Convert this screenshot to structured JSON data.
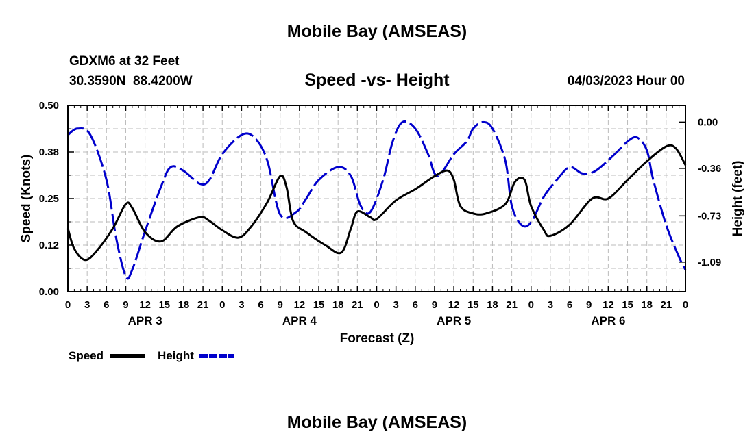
{
  "chart_data": {
    "type": "line",
    "title": "Mobile Bay (AMSEAS)",
    "subtitle": "Speed -vs- Height",
    "station": "GDXM6 at 32 Feet",
    "coords": "30.3590N  88.4200W",
    "date": "04/03/2023 Hour 00",
    "footer_title": "Mobile Bay (AMSEAS)",
    "xlabel": "Forecast (Z)",
    "ylabel_left": "Speed (Knots)",
    "ylabel_right": "Height (feet)",
    "x_range": [
      0,
      96
    ],
    "y_left_range": [
      0,
      0.5
    ],
    "y_right_range": [
      -1.32,
      0.13
    ],
    "y_left_ticks": [
      {
        "value": 0.0,
        "label": "0.00"
      },
      {
        "value": 0.125,
        "label": "0.12"
      },
      {
        "value": 0.25,
        "label": "0.25"
      },
      {
        "value": 0.375,
        "label": "0.38"
      },
      {
        "value": 0.5,
        "label": "0.50"
      }
    ],
    "y_right_ticks": [
      {
        "value": 0.0,
        "label": "0.00"
      },
      {
        "value": -0.36,
        "label": "-0.36"
      },
      {
        "value": -0.73,
        "label": "-0.73"
      },
      {
        "value": -1.09,
        "label": "-1.09"
      }
    ],
    "x_ticks": [
      {
        "h": 0,
        "label": "0"
      },
      {
        "h": 3,
        "label": "3"
      },
      {
        "h": 6,
        "label": "6"
      },
      {
        "h": 9,
        "label": "9"
      },
      {
        "h": 12,
        "label": "12"
      },
      {
        "h": 15,
        "label": "15"
      },
      {
        "h": 18,
        "label": "18"
      },
      {
        "h": 21,
        "label": "21"
      },
      {
        "h": 24,
        "label": "0"
      },
      {
        "h": 27,
        "label": "3"
      },
      {
        "h": 30,
        "label": "6"
      },
      {
        "h": 33,
        "label": "9"
      },
      {
        "h": 36,
        "label": "12"
      },
      {
        "h": 39,
        "label": "15"
      },
      {
        "h": 42,
        "label": "18"
      },
      {
        "h": 45,
        "label": "21"
      },
      {
        "h": 48,
        "label": "0"
      },
      {
        "h": 51,
        "label": "3"
      },
      {
        "h": 54,
        "label": "6"
      },
      {
        "h": 57,
        "label": "9"
      },
      {
        "h": 60,
        "label": "12"
      },
      {
        "h": 63,
        "label": "15"
      },
      {
        "h": 66,
        "label": "18"
      },
      {
        "h": 69,
        "label": "21"
      },
      {
        "h": 72,
        "label": "0"
      },
      {
        "h": 75,
        "label": "3"
      },
      {
        "h": 78,
        "label": "6"
      },
      {
        "h": 81,
        "label": "9"
      },
      {
        "h": 84,
        "label": "12"
      },
      {
        "h": 87,
        "label": "15"
      },
      {
        "h": 90,
        "label": "18"
      },
      {
        "h": 93,
        "label": "21"
      },
      {
        "h": 96,
        "label": "0"
      }
    ],
    "day_labels": [
      {
        "h": 12,
        "label": "APR 3"
      },
      {
        "h": 36,
        "label": "APR 4"
      },
      {
        "h": 60,
        "label": "APR 5"
      },
      {
        "h": 84,
        "label": "APR 6"
      }
    ],
    "series": [
      {
        "name": "Speed",
        "axis": "left",
        "color": "#000000",
        "style": "solid",
        "points": [
          [
            0,
            0.17
          ],
          [
            1,
            0.115
          ],
          [
            2.7,
            0.085
          ],
          [
            4.5,
            0.11
          ],
          [
            7,
            0.17
          ],
          [
            9,
            0.235
          ],
          [
            10,
            0.225
          ],
          [
            12,
            0.16
          ],
          [
            14.5,
            0.135
          ],
          [
            17,
            0.175
          ],
          [
            20.5,
            0.2
          ],
          [
            22,
            0.19
          ],
          [
            24,
            0.165
          ],
          [
            26.5,
            0.145
          ],
          [
            28.5,
            0.175
          ],
          [
            31,
            0.24
          ],
          [
            33,
            0.31
          ],
          [
            34,
            0.28
          ],
          [
            35,
            0.19
          ],
          [
            37,
            0.16
          ],
          [
            40,
            0.125
          ],
          [
            42.5,
            0.105
          ],
          [
            44,
            0.17
          ],
          [
            45,
            0.215
          ],
          [
            47,
            0.2
          ],
          [
            48,
            0.195
          ],
          [
            51,
            0.245
          ],
          [
            54,
            0.275
          ],
          [
            57,
            0.31
          ],
          [
            59,
            0.325
          ],
          [
            60,
            0.3
          ],
          [
            61,
            0.23
          ],
          [
            63,
            0.21
          ],
          [
            65,
            0.21
          ],
          [
            68,
            0.235
          ],
          [
            69.5,
            0.295
          ],
          [
            71,
            0.3
          ],
          [
            72,
            0.23
          ],
          [
            74,
            0.165
          ],
          [
            75,
            0.15
          ],
          [
            78,
            0.18
          ],
          [
            81.5,
            0.25
          ],
          [
            84,
            0.25
          ],
          [
            87,
            0.3
          ],
          [
            90,
            0.35
          ],
          [
            93,
            0.39
          ],
          [
            94.5,
            0.385
          ],
          [
            96,
            0.34
          ]
        ]
      },
      {
        "name": "Height",
        "axis": "right",
        "color": "#0000cc",
        "style": "dashed",
        "points": [
          [
            0,
            -0.1
          ],
          [
            1.5,
            -0.05
          ],
          [
            3.5,
            -0.1
          ],
          [
            6,
            -0.45
          ],
          [
            7.5,
            -0.9
          ],
          [
            9,
            -1.2
          ],
          [
            10,
            -1.15
          ],
          [
            12,
            -0.85
          ],
          [
            14.5,
            -0.5
          ],
          [
            16,
            -0.35
          ],
          [
            18,
            -0.38
          ],
          [
            20.5,
            -0.48
          ],
          [
            22,
            -0.45
          ],
          [
            24,
            -0.25
          ],
          [
            27,
            -0.1
          ],
          [
            29,
            -0.12
          ],
          [
            31,
            -0.3
          ],
          [
            33,
            -0.72
          ],
          [
            35.5,
            -0.7
          ],
          [
            37,
            -0.6
          ],
          [
            39,
            -0.45
          ],
          [
            42,
            -0.35
          ],
          [
            44,
            -0.42
          ],
          [
            45.5,
            -0.65
          ],
          [
            47,
            -0.7
          ],
          [
            49,
            -0.45
          ],
          [
            50.5,
            -0.15
          ],
          [
            52,
            0.0
          ],
          [
            54,
            -0.05
          ],
          [
            56,
            -0.25
          ],
          [
            57,
            -0.4
          ],
          [
            58,
            -0.4
          ],
          [
            60,
            -0.25
          ],
          [
            62,
            -0.15
          ],
          [
            63,
            -0.05
          ],
          [
            64.5,
            0.0
          ],
          [
            66,
            -0.05
          ],
          [
            68,
            -0.3
          ],
          [
            69,
            -0.65
          ],
          [
            70.5,
            -0.8
          ],
          [
            72,
            -0.78
          ],
          [
            74,
            -0.58
          ],
          [
            76,
            -0.45
          ],
          [
            78,
            -0.35
          ],
          [
            80,
            -0.4
          ],
          [
            82,
            -0.38
          ],
          [
            85,
            -0.25
          ],
          [
            87,
            -0.15
          ],
          [
            88.5,
            -0.12
          ],
          [
            90,
            -0.22
          ],
          [
            91,
            -0.45
          ],
          [
            93,
            -0.8
          ],
          [
            95,
            -1.05
          ],
          [
            96,
            -1.15
          ]
        ]
      }
    ],
    "legend": [
      {
        "label": "Speed",
        "color": "#000000",
        "style": "solid"
      },
      {
        "label": "Height",
        "color": "#0000cc",
        "style": "dashed"
      }
    ]
  }
}
